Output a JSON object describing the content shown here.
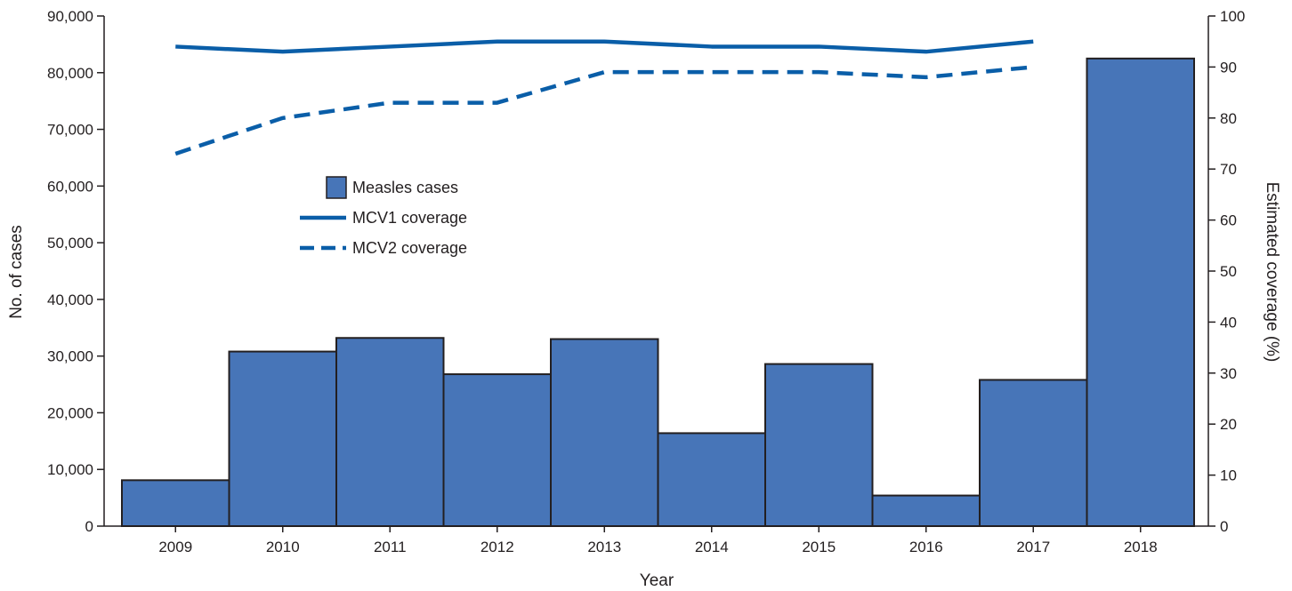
{
  "chart_data": {
    "type": "bar",
    "title": "",
    "xlabel": "Year",
    "ylabel": "No. of cases",
    "y2label": "Estimated coverage (%)",
    "categories": [
      "2009",
      "2010",
      "2011",
      "2012",
      "2013",
      "2014",
      "2015",
      "2016",
      "2017",
      "2018"
    ],
    "ylim": [
      0,
      90000
    ],
    "y_ticks": [
      0,
      10000,
      20000,
      30000,
      40000,
      50000,
      60000,
      70000,
      80000,
      90000
    ],
    "y_tick_labels": [
      "0",
      "10,000",
      "20,000",
      "30,000",
      "40,000",
      "50,000",
      "60,000",
      "70,000",
      "80,000",
      "90,000"
    ],
    "y2lim": [
      0,
      100
    ],
    "y2_ticks": [
      0,
      10,
      20,
      30,
      40,
      50,
      60,
      70,
      80,
      90,
      100
    ],
    "y2_tick_labels": [
      "0",
      "10",
      "20",
      "30",
      "40",
      "50",
      "60",
      "70",
      "80",
      "90",
      "100"
    ],
    "grid": false,
    "legend_position": "upper-left inside plot",
    "series": [
      {
        "name": "Measles cases",
        "kind": "bar",
        "axis": "left",
        "color": "#4775b8",
        "values": [
          8100,
          30800,
          33200,
          26800,
          33000,
          16400,
          28600,
          5400,
          25800,
          82500
        ]
      },
      {
        "name": "MCV1 coverage",
        "kind": "line",
        "style": "solid",
        "axis": "right",
        "color": "#0a5ea8",
        "values": [
          94,
          93,
          94,
          95,
          95,
          94,
          94,
          93,
          95,
          null
        ]
      },
      {
        "name": "MCV2 coverage",
        "kind": "line",
        "style": "dashed",
        "axis": "right",
        "color": "#0a5ea8",
        "values": [
          73,
          80,
          83,
          83,
          89,
          89,
          89,
          88,
          90,
          null
        ]
      }
    ]
  }
}
